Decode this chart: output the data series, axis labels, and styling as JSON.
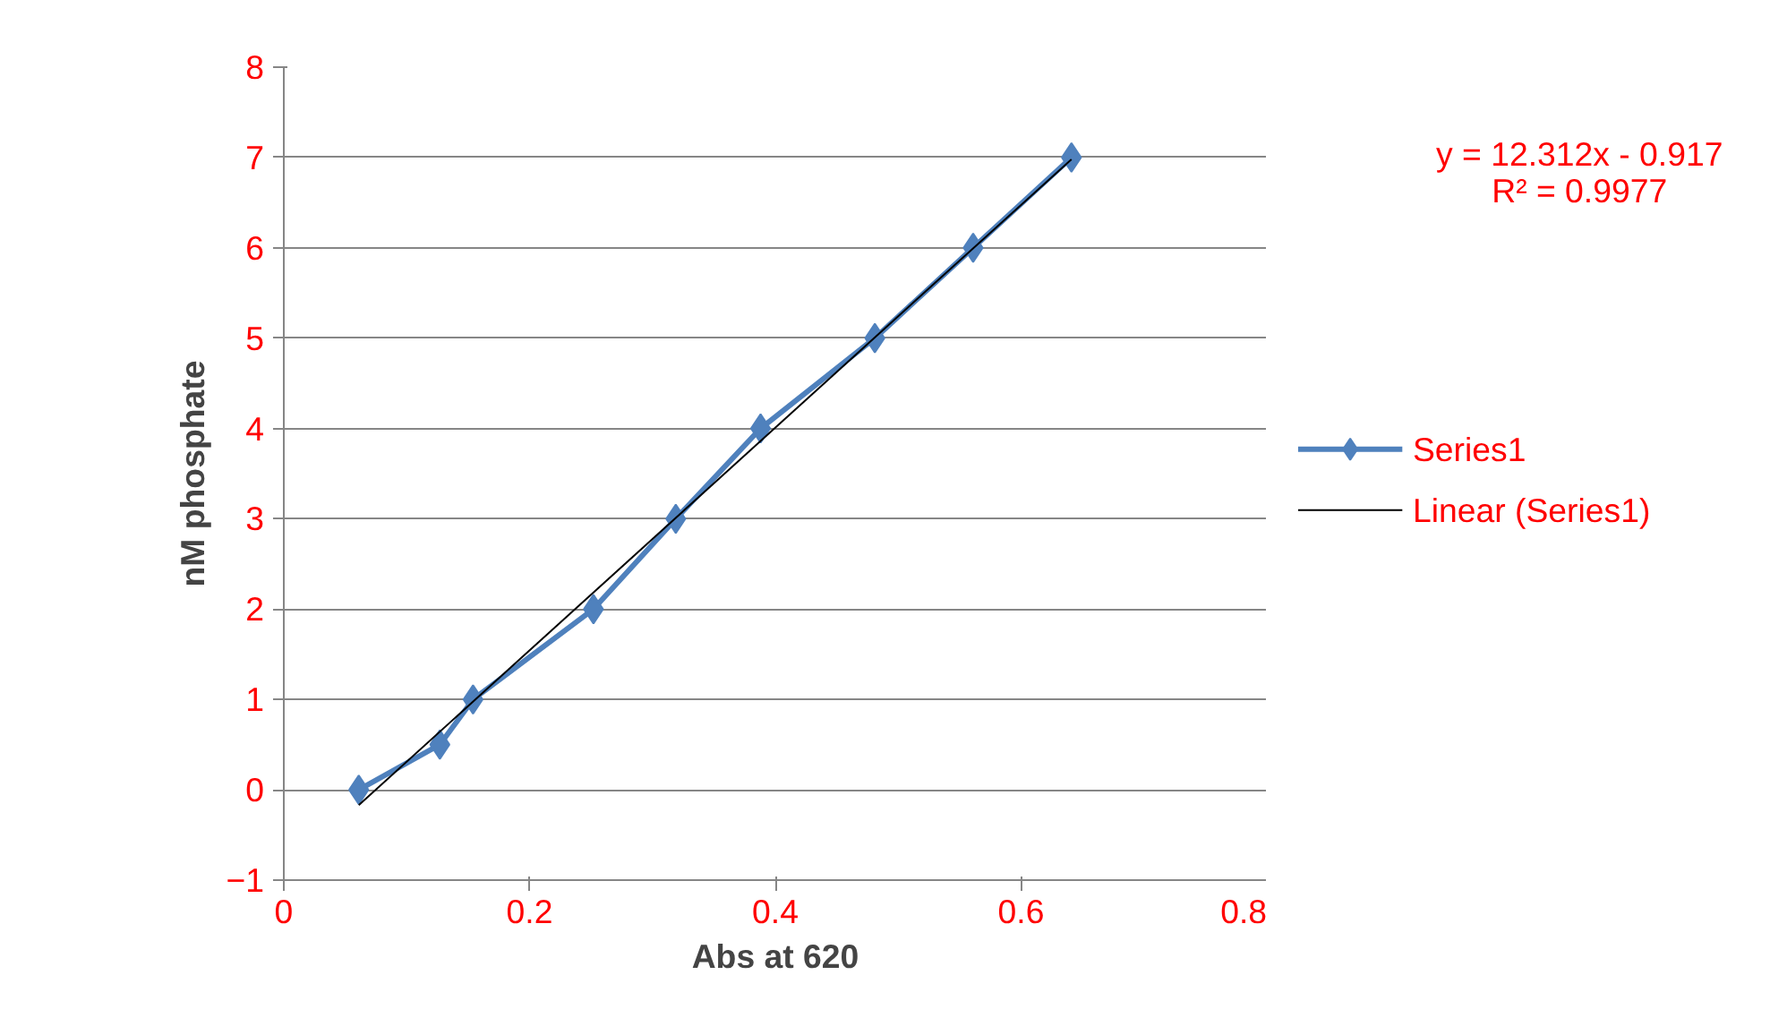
{
  "chart_data": {
    "type": "line",
    "xlabel": "Abs at 620",
    "ylabel": "nM phosphate",
    "x": [
      0.061,
      0.127,
      0.154,
      0.252,
      0.319,
      0.388,
      0.481,
      0.561,
      0.641
    ],
    "series": [
      {
        "name": "Series1",
        "color": "#4f81bd",
        "values": [
          0,
          0.5,
          1,
          2,
          3,
          4,
          5,
          6,
          7
        ],
        "marker": "diamond"
      },
      {
        "name": "Linear (Series1)",
        "color": "#000000",
        "type": "line",
        "x": [
          0.061,
          0.641
        ],
        "values": [
          -0.17,
          6.98
        ],
        "marker": "none"
      }
    ],
    "xlim": [
      0,
      0.8
    ],
    "xticks": [
      0,
      0.2,
      0.4,
      0.6,
      0.8
    ],
    "ylim": [
      -1,
      8
    ],
    "yticks": [
      -1,
      0,
      1,
      2,
      3,
      4,
      5,
      6,
      7,
      8
    ],
    "grid": "y",
    "legend": "right",
    "annotations": [
      "y = 12.312x - 0.917",
      "R² = 0.9977"
    ]
  }
}
